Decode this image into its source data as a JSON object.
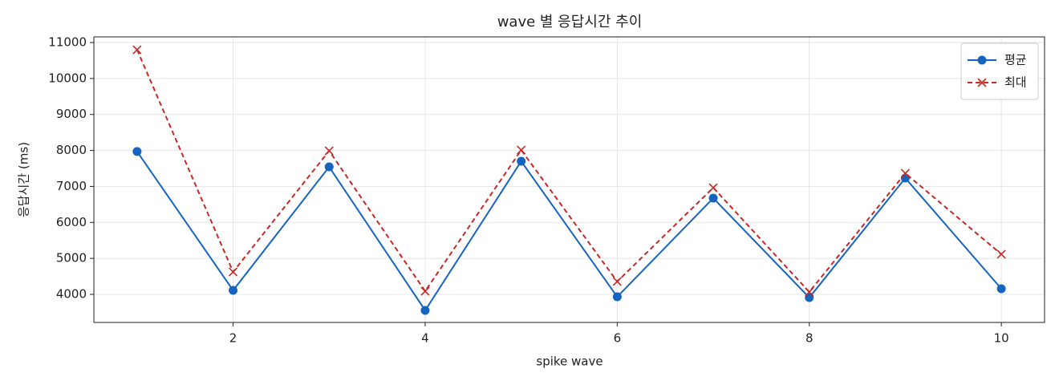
{
  "chart_data": {
    "type": "line",
    "title": "wave 별 응답시간 추이",
    "x_label": "spike wave",
    "y_label": "응답시간 (ms)",
    "x": [
      1,
      2,
      3,
      4,
      5,
      6,
      7,
      8,
      9,
      10
    ],
    "series": [
      {
        "name": "평균",
        "color": "#1565c0",
        "marker": "circle",
        "dashed": false,
        "values": [
          7970,
          4111,
          7544,
          3554,
          7700,
          3933,
          6675,
          3911,
          7232,
          4156
        ]
      },
      {
        "name": "최대",
        "color": "#c62828",
        "marker": "x",
        "dashed": true,
        "values": [
          10799,
          4624,
          7990,
          4089,
          8012,
          4357,
          6965,
          4067,
          7366,
          5115
        ]
      }
    ],
    "xlim": [
      0.55,
      10.45
    ],
    "xticks": [
      2,
      4,
      6,
      8,
      10
    ],
    "ylim": [
      3220,
      11156
    ],
    "yticks": [
      4000,
      5000,
      6000,
      7000,
      8000,
      9000,
      10000,
      11000
    ],
    "grid": true,
    "legend": "upper right"
  }
}
